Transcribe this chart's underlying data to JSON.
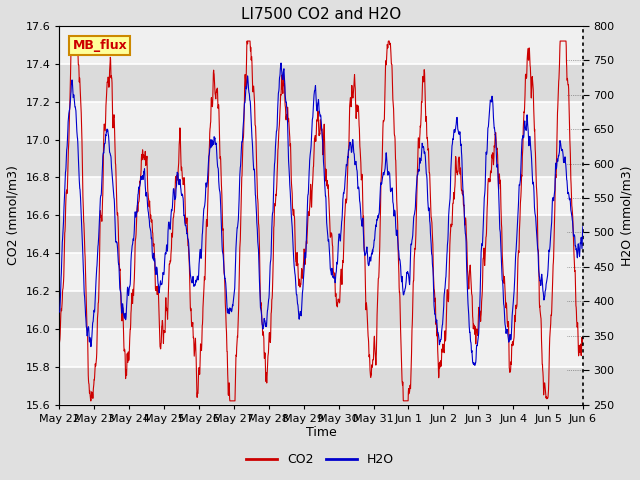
{
  "title": "LI7500 CO2 and H2O",
  "xlabel": "Time",
  "ylabel_left": "CO2 (mmol/m3)",
  "ylabel_right": "H2O (mmol/m3)",
  "co2_ylim": [
    15.6,
    17.6
  ],
  "h2o_ylim": [
    250,
    800
  ],
  "co2_yticks": [
    15.6,
    15.8,
    16.0,
    16.2,
    16.4,
    16.6,
    16.8,
    17.0,
    17.2,
    17.4,
    17.6
  ],
  "h2o_yticks": [
    250,
    300,
    350,
    400,
    450,
    500,
    550,
    600,
    650,
    700,
    750,
    800
  ],
  "xtick_labels": [
    "May 22",
    "May 23",
    "May 24",
    "May 25",
    "May 26",
    "May 27",
    "May 28",
    "May 29",
    "May 30",
    "May 31",
    "Jun 1",
    "Jun 2",
    "Jun 3",
    "Jun 4",
    "Jun 5",
    "Jun 6"
  ],
  "co2_color": "#cc0000",
  "h2o_color": "#0000cc",
  "fig_bg_color": "#e0e0e0",
  "plot_bg_light": "#f0f0f0",
  "plot_bg_dark": "#d8d8d8",
  "annotation_text": "MB_flux",
  "annotation_bg": "#ffff99",
  "annotation_border": "#cc8800",
  "legend_co2": "CO2",
  "legend_h2o": "H2O",
  "title_fontsize": 11,
  "axis_fontsize": 9,
  "tick_fontsize": 8
}
